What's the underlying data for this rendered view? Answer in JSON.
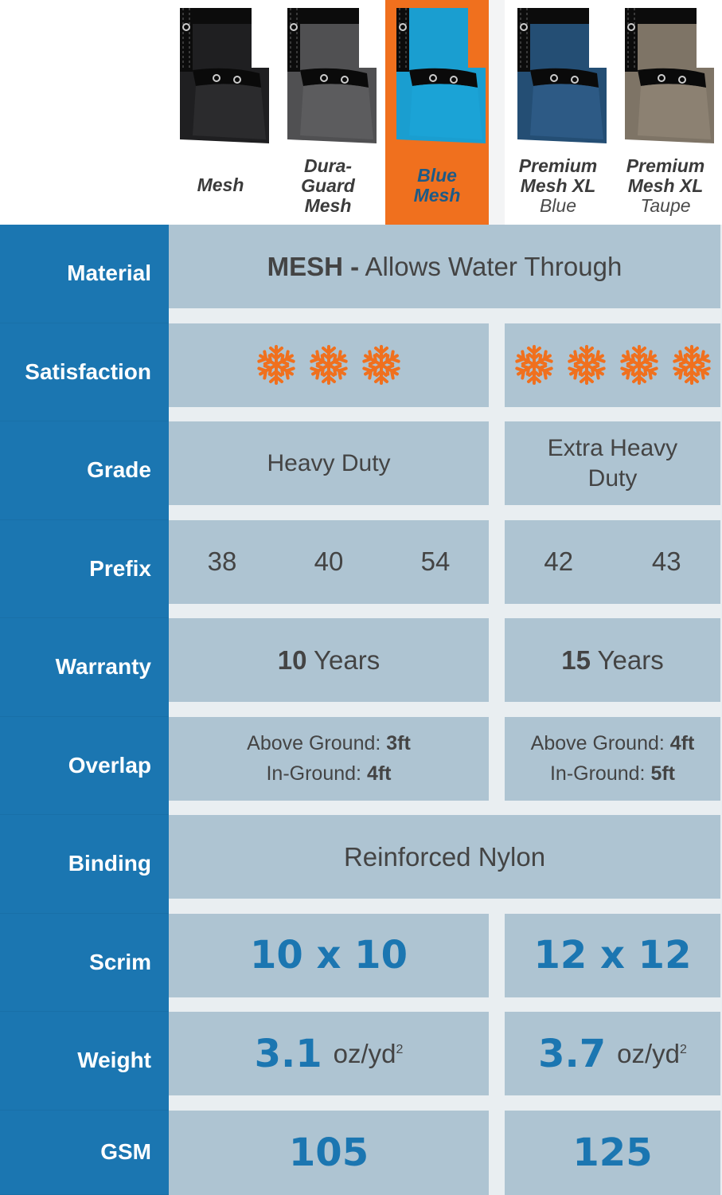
{
  "header": {
    "columns": [
      {
        "name": "Mesh",
        "sub": ""
      },
      {
        "name": "Dura-Guard Mesh",
        "lines": [
          "Dura-",
          "Guard",
          "Mesh"
        ],
        "sub": ""
      },
      {
        "name": "Blue Mesh",
        "lines": [
          "Blue",
          "Mesh"
        ],
        "sub": ""
      },
      {
        "name": "Premium Mesh XL",
        "lines": [
          "Premium",
          "Mesh XL"
        ],
        "sub": "Blue"
      },
      {
        "name": "Premium Mesh XL",
        "lines": [
          "Premium",
          "Mesh XL"
        ],
        "sub": "Taupe"
      }
    ],
    "highlight_color": "#f0701e"
  },
  "colors": {
    "label_bg": "#1b76b1",
    "cell_bg": "#aec4d2",
    "accent_blue": "#1b76b1",
    "snowflake": "#f0701e"
  },
  "rows": {
    "material": {
      "label": "Material",
      "strong": "MESH -",
      "text": "Allows Water Through"
    },
    "satisfaction": {
      "label": "Satisfaction",
      "left_icons": 3,
      "right_icons": 4,
      "icon": "snowflake-icon"
    },
    "grade": {
      "label": "Grade",
      "left": "Heavy Duty",
      "right": "Extra Heavy Duty"
    },
    "prefix": {
      "label": "Prefix",
      "left": [
        "38",
        "40",
        "54"
      ],
      "right": [
        "42",
        "43"
      ]
    },
    "warranty": {
      "label": "Warranty",
      "left_num": "10",
      "left_unit": "Years",
      "right_num": "15",
      "right_unit": "Years"
    },
    "overlap": {
      "label": "Overlap",
      "left": {
        "above_label": "Above Ground:",
        "above_val": "3ft",
        "in_label": "In-Ground:",
        "in_val": "4ft"
      },
      "right": {
        "above_label": "Above Ground:",
        "above_val": "4ft",
        "in_label": "In-Ground:",
        "in_val": "5ft"
      }
    },
    "binding": {
      "label": "Binding",
      "text": "Reinforced Nylon"
    },
    "scrim": {
      "label": "Scrim",
      "left": "10 x 10",
      "right": "12 x 12"
    },
    "weight": {
      "label": "Weight",
      "left": "3.1",
      "right": "3.7",
      "unit": "oz/yd",
      "unit_sup": "2"
    },
    "gsm": {
      "label": "GSM",
      "left": "105",
      "right": "125"
    }
  }
}
